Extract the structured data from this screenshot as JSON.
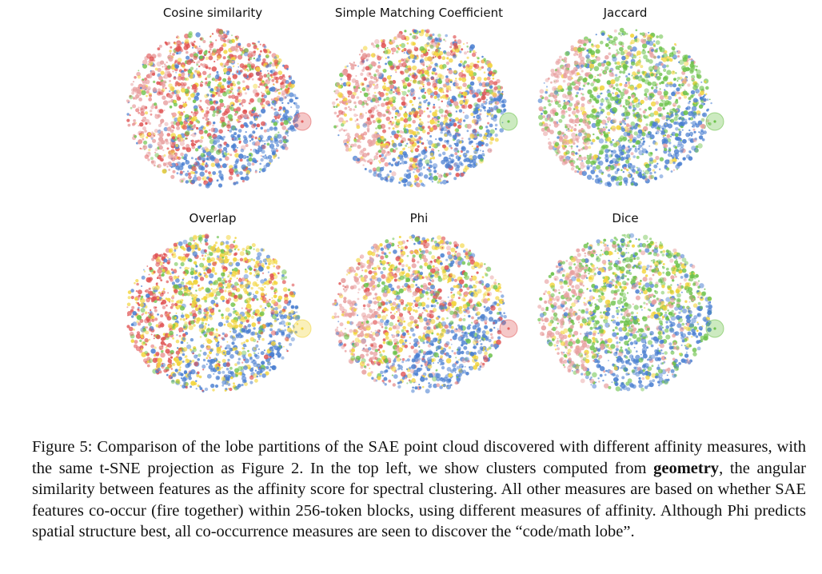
{
  "figure": {
    "panels": [
      {
        "title": "Cosine similarity",
        "highlight": "#e26060",
        "palette": [
          "#e05252",
          "#e05252",
          "#e05252",
          "#4a7fd1",
          "#6cc24a",
          "#f2d43a",
          "#e8a0a0"
        ]
      },
      {
        "title": "Simple Matching Coefficient",
        "highlight": "#6cc24a",
        "palette": [
          "#e05252",
          "#e05252",
          "#4a7fd1",
          "#6cc24a",
          "#f2d43a",
          "#f2d43a",
          "#e8a0a0"
        ]
      },
      {
        "title": "Jaccard",
        "highlight": "#6cc24a",
        "palette": [
          "#6cc24a",
          "#6cc24a",
          "#6cc24a",
          "#4a7fd1",
          "#f2d43a",
          "#e8a0a0"
        ]
      },
      {
        "title": "Overlap",
        "highlight": "#f2d43a",
        "palette": [
          "#f2d43a",
          "#f2d43a",
          "#f2d43a",
          "#4a7fd1",
          "#6cc24a",
          "#e05252"
        ]
      },
      {
        "title": "Phi",
        "highlight": "#e26060",
        "palette": [
          "#f2d43a",
          "#f2d43a",
          "#e05252",
          "#4a7fd1",
          "#6cc24a",
          "#e8a0a0"
        ]
      },
      {
        "title": "Dice",
        "highlight": "#6cc24a",
        "palette": [
          "#6cc24a",
          "#6cc24a",
          "#6cc24a",
          "#4a7fd1",
          "#f2d43a",
          "#e8a0a0"
        ]
      }
    ]
  },
  "caption": {
    "label": "Figure 5:",
    "part1": " Comparison of the lobe partitions of the SAE point cloud discovered with different affinity measures, with the same t-SNE projection as Figure 2. In the top left, we show clusters computed from ",
    "bold": "geometry",
    "part2": ", the angular similarity between features as the affinity score for spectral clustering. All other measures are based on whether SAE features co-occur (fire together) within 256-token blocks, using different measures of affinity. Although Phi predicts spatial structure best, all co-occurrence measures are seen to discover the “code/math lobe”."
  }
}
